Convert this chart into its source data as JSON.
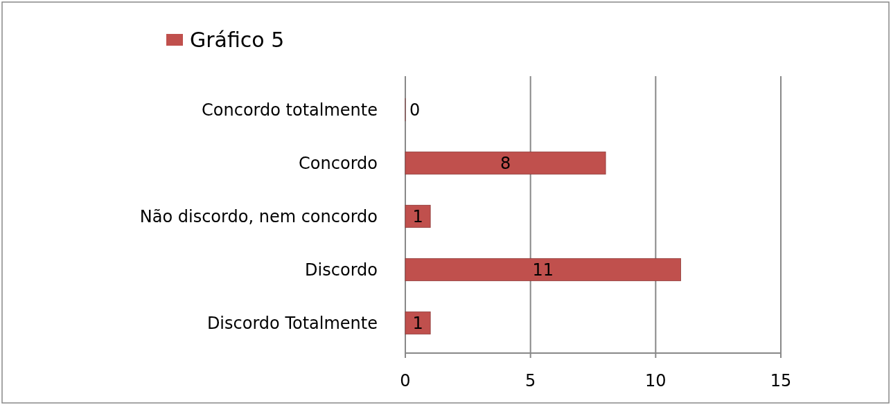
{
  "chart_data": {
    "type": "bar",
    "orientation": "horizontal",
    "categories": [
      "Concordo totalmente",
      "Concordo",
      "Não discordo, nem concordo",
      "Discordo",
      "Discordo Totalmente"
    ],
    "series": [
      {
        "name": "Gráfico 5",
        "color": "#c0504d",
        "values": [
          0,
          8,
          1,
          11,
          1
        ]
      }
    ],
    "xlim": [
      0,
      15
    ],
    "xticks": [
      0,
      5,
      10,
      15
    ],
    "grid": "x",
    "legend": "top left",
    "data_labels": true
  }
}
